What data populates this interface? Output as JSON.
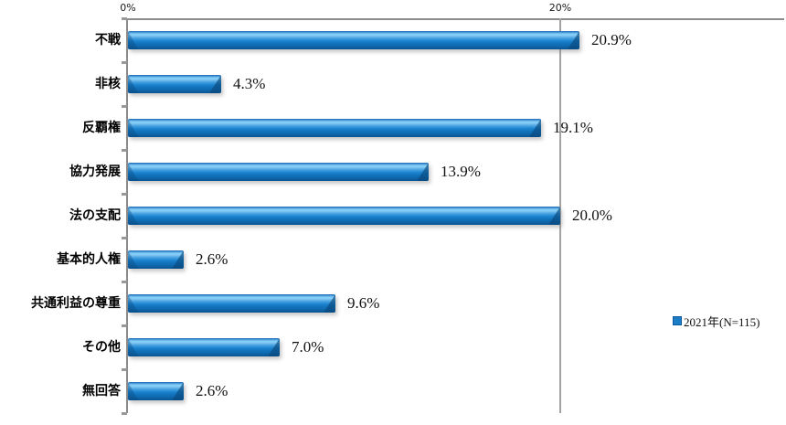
{
  "chart_data": {
    "type": "bar",
    "orientation": "horizontal",
    "title": "",
    "categories": [
      "不戦",
      "非核",
      "反覇権",
      "協力発展",
      "法の支配",
      "基本的人権",
      "共通利益の尊重",
      "その他",
      "無回答"
    ],
    "values": [
      20.9,
      4.3,
      19.1,
      13.9,
      20.0,
      2.6,
      9.6,
      7.0,
      2.6
    ],
    "value_labels": [
      "20.9%",
      "4.3%",
      "19.1%",
      "13.9%",
      "20.0%",
      "2.6%",
      "9.6%",
      "7.0%",
      "2.6%"
    ],
    "x_ticks": [
      {
        "value": 0,
        "label": "0%"
      },
      {
        "value": 20,
        "label": "20%"
      }
    ],
    "xlim": [
      0,
      30.3
    ],
    "grid": "single vertical gridline at 20%, axis on top",
    "legend_position": "right",
    "legend": [
      {
        "label": "2021年(N=115)",
        "color": "#1c7dc6"
      }
    ],
    "colors": {
      "bar_main": "#1b7fc9",
      "bar_highlight": "#8ed1f7",
      "bar_shadow_edge": "#0a5390",
      "axis": "#8c8c8c",
      "gridline": "#a3a3a3",
      "text": "#111111",
      "background": "#ffffff"
    }
  }
}
